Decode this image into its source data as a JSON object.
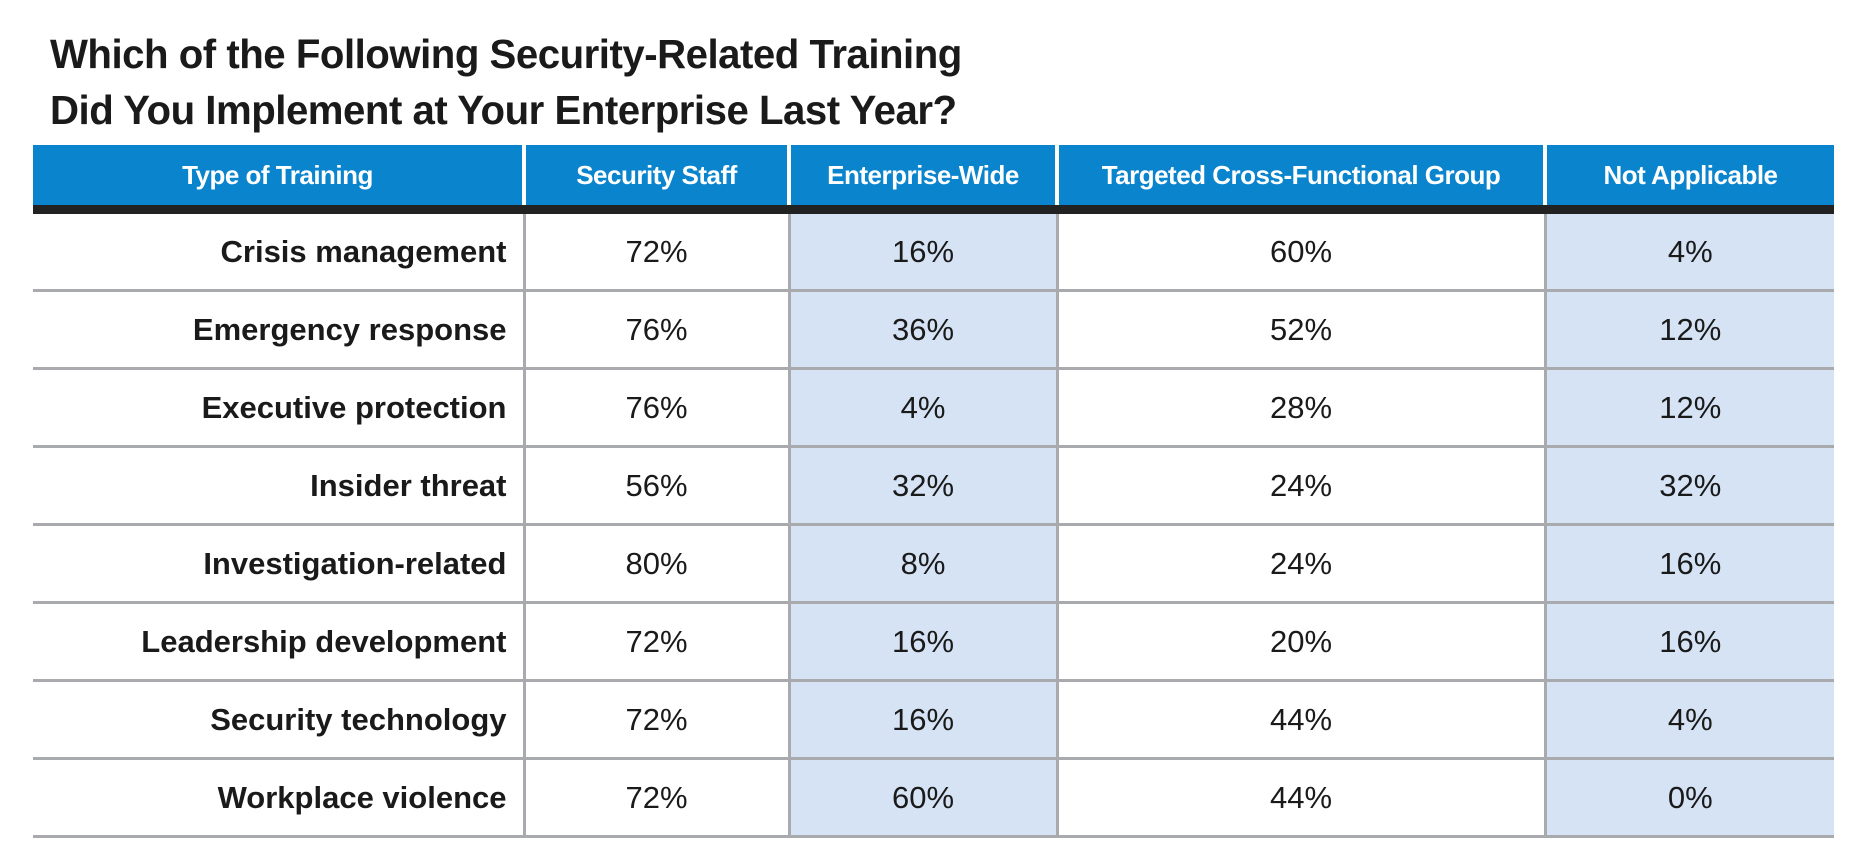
{
  "chart_data": {
    "type": "table",
    "title_lines": [
      "Which of the Following Security-Related Training",
      "Did You Implement at Your Enterprise Last Year?"
    ],
    "columns": [
      "Type of Training",
      "Security Staff",
      "Enterprise-Wide",
      "Targeted Cross-Functional Group",
      "Not Applicable"
    ],
    "rows": [
      [
        "Crisis management",
        "72%",
        "16%",
        "60%",
        "4%"
      ],
      [
        "Emergency response",
        "76%",
        "36%",
        "52%",
        "12%"
      ],
      [
        "Executive protection",
        "76%",
        "4%",
        "28%",
        "12%"
      ],
      [
        "Insider threat",
        "56%",
        "32%",
        "24%",
        "32%"
      ],
      [
        "Investigation-related",
        "80%",
        "8%",
        "24%",
        "16%"
      ],
      [
        "Leadership development",
        "72%",
        "16%",
        "20%",
        "16%"
      ],
      [
        "Security technology",
        "72%",
        "16%",
        "44%",
        "4%"
      ],
      [
        "Workplace violence",
        "72%",
        "60%",
        "44%",
        "0%"
      ]
    ],
    "colors": {
      "header": "#0a84cc",
      "shaded_column": "#d5e3f4",
      "header_rule": "#222222"
    }
  }
}
